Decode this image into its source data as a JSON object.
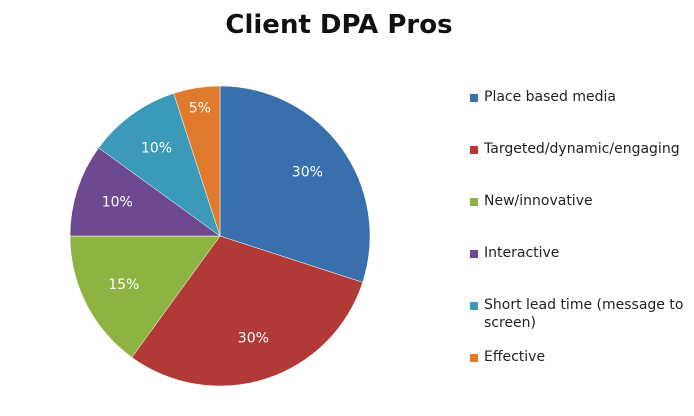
{
  "chart_data": {
    "type": "pie",
    "title": "Client DPA Pros",
    "categories": [
      "Place based media",
      "Targeted/dynamic/engaging",
      "New/innovative",
      "Interactive",
      "Short lead time (message to screen)",
      "Effective"
    ],
    "values": [
      30,
      30,
      15,
      10,
      10,
      5
    ],
    "labels": [
      "30%",
      "30%",
      "15%",
      "10%",
      "10%",
      "5%"
    ],
    "colors": [
      "#3a6fad",
      "#b13a36",
      "#8db443",
      "#6d4a8f",
      "#3a9ab8",
      "#e07b2e"
    ],
    "start": "12 o'clock",
    "direction": "clockwise",
    "legend_position": "right"
  }
}
